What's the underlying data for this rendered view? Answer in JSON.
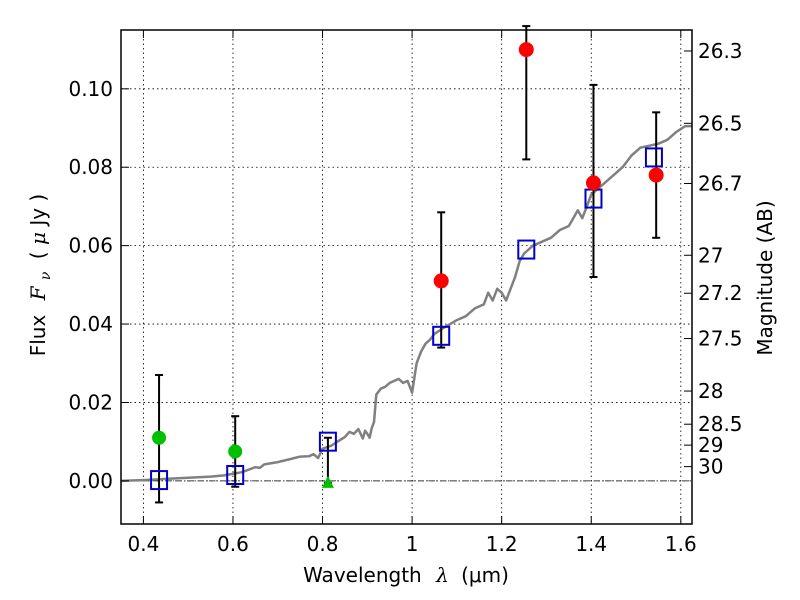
{
  "chart_data": {
    "type": "scatter",
    "xlabel": {
      "text": "Wavelength",
      "symbol": "λ",
      "unit": "(μm)"
    },
    "ylabel": {
      "text": "Flux",
      "symbol": "F",
      "subscript": "ν",
      "unit_open": "( ",
      "unit_mu": "μ",
      "unit_rest": "Jy )"
    },
    "y2label": "Magnitude (AB)",
    "xlim": [
      0.35,
      1.625
    ],
    "ylim": [
      -0.011,
      0.115
    ],
    "x_ticks": [
      {
        "value": 0.4,
        "label": "0.4"
      },
      {
        "value": 0.6,
        "label": "0.6"
      },
      {
        "value": 0.8,
        "label": "0.8"
      },
      {
        "value": 1.0,
        "label": "1"
      },
      {
        "value": 1.2,
        "label": "1.2"
      },
      {
        "value": 1.4,
        "label": "1.4"
      },
      {
        "value": 1.6,
        "label": "1.6"
      }
    ],
    "y_ticks": [
      {
        "value": 0.0,
        "label": "0.00"
      },
      {
        "value": 0.02,
        "label": "0.02"
      },
      {
        "value": 0.04,
        "label": "0.04"
      },
      {
        "value": 0.06,
        "label": "0.06"
      },
      {
        "value": 0.08,
        "label": "0.08"
      },
      {
        "value": 0.1,
        "label": "0.10"
      }
    ],
    "y2_ticks": [
      {
        "value": 26.3,
        "label": "26.3"
      },
      {
        "value": 26.5,
        "label": "26.5"
      },
      {
        "value": 26.7,
        "label": "26.7"
      },
      {
        "value": 27,
        "label": "27"
      },
      {
        "value": 27.2,
        "label": "27.2"
      },
      {
        "value": 27.5,
        "label": "27.5"
      },
      {
        "value": 28,
        "label": "28"
      },
      {
        "value": 28.5,
        "label": "28.5"
      },
      {
        "value": 29,
        "label": "29"
      },
      {
        "value": 30,
        "label": "30"
      }
    ],
    "grid": true,
    "zero_line": true,
    "colors": {
      "model": "#808080",
      "red": "#ff0000",
      "green": "#00c000",
      "square": "#0000cc",
      "errorbar": "#000000"
    },
    "model_spectrum": [
      [
        0.35,
        0.0
      ],
      [
        0.4,
        0.0002
      ],
      [
        0.45,
        0.0005
      ],
      [
        0.5,
        0.0008
      ],
      [
        0.55,
        0.0011
      ],
      [
        0.58,
        0.0014
      ],
      [
        0.62,
        0.0022
      ],
      [
        0.65,
        0.0035
      ],
      [
        0.66,
        0.0033
      ],
      [
        0.67,
        0.0042
      ],
      [
        0.7,
        0.0048
      ],
      [
        0.73,
        0.0056
      ],
      [
        0.75,
        0.0062
      ],
      [
        0.77,
        0.0063
      ],
      [
        0.78,
        0.0068
      ],
      [
        0.79,
        0.0058
      ],
      [
        0.8,
        0.0082
      ],
      [
        0.82,
        0.009
      ],
      [
        0.83,
        0.0098
      ],
      [
        0.85,
        0.0112
      ],
      [
        0.86,
        0.0125
      ],
      [
        0.87,
        0.012
      ],
      [
        0.88,
        0.0132
      ],
      [
        0.89,
        0.0108
      ],
      [
        0.895,
        0.0128
      ],
      [
        0.9,
        0.012
      ],
      [
        0.905,
        0.011
      ],
      [
        0.91,
        0.0135
      ],
      [
        0.915,
        0.015
      ],
      [
        0.92,
        0.022
      ],
      [
        0.93,
        0.0235
      ],
      [
        0.94,
        0.024
      ],
      [
        0.95,
        0.025
      ],
      [
        0.96,
        0.0255
      ],
      [
        0.97,
        0.026
      ],
      [
        0.98,
        0.025
      ],
      [
        0.99,
        0.0255
      ],
      [
        1.0,
        0.0225
      ],
      [
        1.01,
        0.03
      ],
      [
        1.02,
        0.033
      ],
      [
        1.03,
        0.035
      ],
      [
        1.04,
        0.036
      ],
      [
        1.05,
        0.0375
      ],
      [
        1.07,
        0.039
      ],
      [
        1.1,
        0.041
      ],
      [
        1.12,
        0.042
      ],
      [
        1.14,
        0.044
      ],
      [
        1.16,
        0.045
      ],
      [
        1.17,
        0.048
      ],
      [
        1.18,
        0.046
      ],
      [
        1.19,
        0.049
      ],
      [
        1.2,
        0.048
      ],
      [
        1.21,
        0.046
      ],
      [
        1.22,
        0.049
      ],
      [
        1.23,
        0.052
      ],
      [
        1.24,
        0.056
      ],
      [
        1.25,
        0.058
      ],
      [
        1.27,
        0.06
      ],
      [
        1.29,
        0.061
      ],
      [
        1.31,
        0.062
      ],
      [
        1.33,
        0.064
      ],
      [
        1.35,
        0.065
      ],
      [
        1.36,
        0.067
      ],
      [
        1.37,
        0.069
      ],
      [
        1.38,
        0.067
      ],
      [
        1.39,
        0.07
      ],
      [
        1.4,
        0.073
      ],
      [
        1.41,
        0.074
      ],
      [
        1.43,
        0.076
      ],
      [
        1.45,
        0.078
      ],
      [
        1.47,
        0.08
      ],
      [
        1.49,
        0.083
      ],
      [
        1.51,
        0.085
      ],
      [
        1.53,
        0.0855
      ],
      [
        1.55,
        0.086
      ],
      [
        1.57,
        0.087
      ],
      [
        1.59,
        0.089
      ],
      [
        1.61,
        0.0905
      ],
      [
        1.625,
        0.0905
      ]
    ],
    "red_points": [
      {
        "x": 1.065,
        "y": 0.051,
        "err_low": 0.034,
        "err_high": 0.0685
      },
      {
        "x": 1.255,
        "y": 0.11,
        "err_low": 0.082,
        "err_high": 0.116
      },
      {
        "x": 1.405,
        "y": 0.076,
        "err_low": 0.052,
        "err_high": 0.101
      },
      {
        "x": 1.545,
        "y": 0.078,
        "err_low": 0.062,
        "err_high": 0.094
      }
    ],
    "green_points": [
      {
        "x": 0.435,
        "y": 0.011,
        "err_low": -0.0055,
        "err_high": 0.027
      },
      {
        "x": 0.605,
        "y": 0.0075,
        "err_low": -0.0015,
        "err_high": 0.0165
      }
    ],
    "green_triangle": {
      "x": 0.812,
      "y": -0.0005,
      "err_low": -0.0005,
      "err_high": 0.011
    },
    "model_squares": [
      {
        "x": 0.435,
        "y": 0.0002
      },
      {
        "x": 0.605,
        "y": 0.0015
      },
      {
        "x": 0.812,
        "y": 0.01
      },
      {
        "x": 1.065,
        "y": 0.037
      },
      {
        "x": 1.255,
        "y": 0.059
      },
      {
        "x": 1.405,
        "y": 0.072
      },
      {
        "x": 1.54,
        "y": 0.0825
      }
    ]
  }
}
